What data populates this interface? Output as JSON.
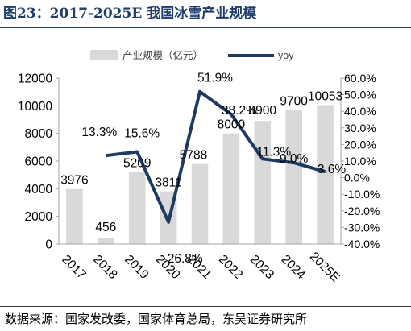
{
  "header": {
    "title": "图23：2017-2025E 我国冰雪产业规模"
  },
  "footer": {
    "source": "数据来源：国家发改委，国家体育总局，东吴证券研究所"
  },
  "chart_data": {
    "type": "bar+line",
    "title": "图23：2017-2025E 我国冰雪产业规模",
    "categories": [
      "2017",
      "2018",
      "2019",
      "2020",
      "2021",
      "2022",
      "2023",
      "2024",
      "2025E"
    ],
    "series": [
      {
        "name": "产业规模（亿元）",
        "type": "bar",
        "axis": "left",
        "values": [
          3976,
          456,
          5209,
          3811,
          5788,
          8000,
          8900,
          9700,
          10053
        ],
        "labels": [
          "3976",
          "456",
          "5209",
          "3811",
          "5788",
          "8000",
          "8900",
          "9700",
          "10053"
        ]
      },
      {
        "name": "yoy",
        "type": "line",
        "axis": "right",
        "values": [
          null,
          13.3,
          15.6,
          -26.8,
          51.9,
          38.2,
          11.3,
          9.0,
          3.6
        ],
        "labels": [
          "",
          "13.3%",
          "15.6%",
          "-26.8%",
          "51.9%",
          "38.2%",
          "11.3%",
          "9.0%",
          "3.6%"
        ]
      }
    ],
    "y_left": {
      "range": [
        0,
        12000
      ],
      "ticks": [
        "0",
        "2000",
        "4000",
        "6000",
        "8000",
        "10000",
        "12000"
      ]
    },
    "y_right": {
      "range": [
        -40,
        60
      ],
      "unit": "%",
      "ticks": [
        "-40.0%",
        "-30.0%",
        "-20.0%",
        "-10.0%",
        "0.0%",
        "10.0%",
        "20.0%",
        "30.0%",
        "40.0%",
        "50.0%",
        "60.0%"
      ]
    },
    "legend": {
      "position": "top"
    },
    "grid": false,
    "colors": {
      "bar": "#d9d9d9",
      "line": "#1f3a60",
      "text": "#000000",
      "axis": "#a6a6a6"
    }
  }
}
